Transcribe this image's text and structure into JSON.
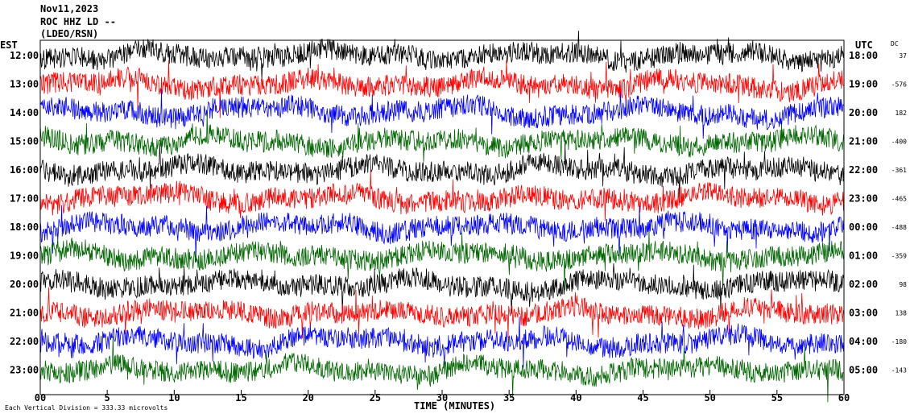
{
  "header": {
    "date": "Nov11,2023",
    "station": "ROC HHZ LD --",
    "network": "(LDEO/RSN)"
  },
  "left_axis_label": "EST",
  "right_axis_label": "UTC",
  "dc_label": "DC",
  "x_axis_title": "TIME (MINUTES)",
  "footer_note": "Each Vertical Division = 333.33 microvolts",
  "chart_data": {
    "type": "line",
    "title": "",
    "xlabel": "TIME (MINUTES)",
    "ylabel": "",
    "xlim": [
      0,
      60
    ],
    "x_ticks": [
      "00",
      "5",
      "10",
      "15",
      "20",
      "25",
      "30",
      "35",
      "40",
      "45",
      "50",
      "55",
      "60"
    ],
    "est_ticks": [
      "12:00",
      "13:00",
      "14:00",
      "15:00",
      "16:00",
      "17:00",
      "18:00",
      "19:00",
      "20:00",
      "21:00",
      "22:00",
      "23:00"
    ],
    "utc_ticks": [
      "18:00",
      "19:00",
      "20:00",
      "21:00",
      "22:00",
      "23:00",
      "00:00",
      "01:00",
      "02:00",
      "03:00",
      "04:00",
      "05:00"
    ],
    "dc_offsets": [
      "37",
      "-576",
      "182",
      "-400",
      "-361",
      "-465",
      "-488",
      "-359",
      "98",
      "138",
      "-180",
      "-143"
    ],
    "trace_colors": [
      "#000000",
      "#ff0000",
      "#0000ff",
      "#006600"
    ],
    "series_count": 12
  }
}
